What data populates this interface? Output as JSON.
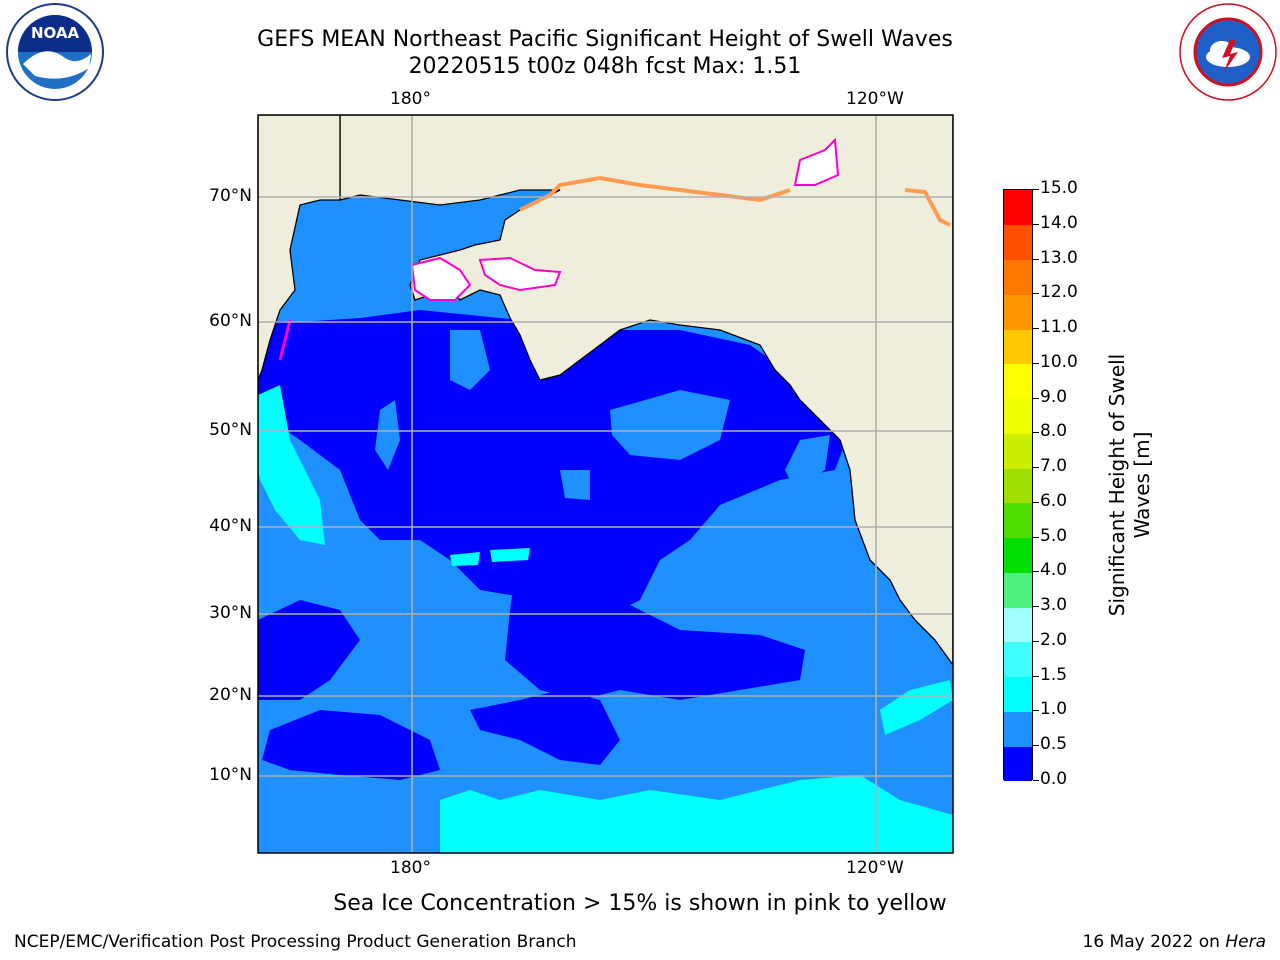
{
  "title": {
    "line1": "GEFS MEAN Northeast Pacific Significant Height of Swell Waves",
    "line2": "20220515 t00z 048h fcst   Max: 1.51"
  },
  "map": {
    "lon_labels": [
      "180°",
      "120°W"
    ],
    "lat_labels": [
      "70°N",
      "60°N",
      "50°N",
      "40°N",
      "30°N",
      "20°N",
      "10°N"
    ],
    "ice_note": "Sea Ice Concentration > 15% is shown in pink to yellow"
  },
  "colorbar": {
    "label_line1": "Significant Height of Swell",
    "label_line2": "Waves [m]",
    "ticks": [
      "0.0",
      "0.5",
      "1.0",
      "1.5",
      "2.0",
      "3.0",
      "4.0",
      "5.0",
      "6.0",
      "7.0",
      "8.0",
      "9.0",
      "10.0",
      "11.0",
      "12.0",
      "13.0",
      "14.0",
      "15.0"
    ],
    "colors": [
      "#0000ff",
      "#1e90ff",
      "#00ffff",
      "#40ffff",
      "#a0ffff",
      "#50f080",
      "#00e000",
      "#50dd00",
      "#a0e000",
      "#ccee00",
      "#eeff00",
      "#ffff00",
      "#ffc800",
      "#ff9600",
      "#ff7800",
      "#ff5000",
      "#ff0000"
    ]
  },
  "logos": {
    "noaa_text": "NOAA",
    "nws_text": "NATIONAL WEATHER SERVICE"
  },
  "footer": {
    "left": "NCEP/EMC/Verification Post Processing Product Generation Branch",
    "right_date": "16 May 2022 on",
    "right_machine": "Hera"
  }
}
